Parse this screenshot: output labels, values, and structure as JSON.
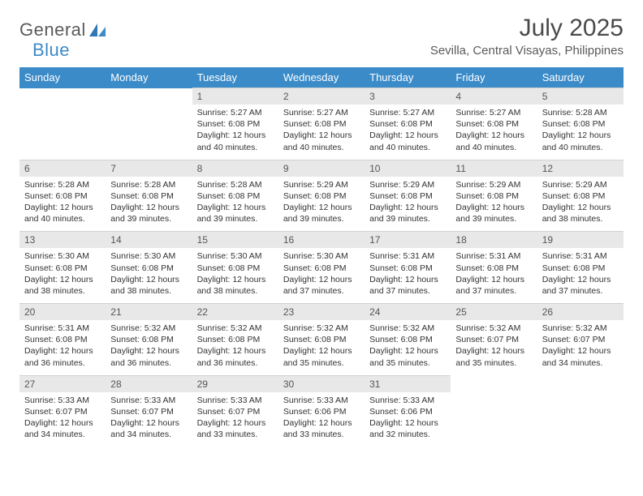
{
  "logo": {
    "text_general": "General",
    "text_blue": "Blue"
  },
  "header": {
    "title": "July 2025",
    "location": "Sevilla, Central Visayas, Philippines"
  },
  "colors": {
    "header_bg": "#3b8bc9",
    "header_text": "#ffffff",
    "daynum_bg": "#e8e8e8",
    "daynum_text": "#555555",
    "body_text": "#333333",
    "page_bg": "#ffffff",
    "logo_gray": "#5a5a5a",
    "logo_blue": "#3b8bc9"
  },
  "fonts": {
    "family": "Arial",
    "title_size_pt": 22,
    "location_size_pt": 11,
    "dayheader_size_pt": 10,
    "daynum_size_pt": 9,
    "detail_size_pt": 8
  },
  "day_headers": [
    "Sunday",
    "Monday",
    "Tuesday",
    "Wednesday",
    "Thursday",
    "Friday",
    "Saturday"
  ],
  "weeks": [
    {
      "days": [
        null,
        null,
        {
          "num": "1",
          "sunrise": "Sunrise: 5:27 AM",
          "sunset": "Sunset: 6:08 PM",
          "daylight1": "Daylight: 12 hours",
          "daylight2": "and 40 minutes."
        },
        {
          "num": "2",
          "sunrise": "Sunrise: 5:27 AM",
          "sunset": "Sunset: 6:08 PM",
          "daylight1": "Daylight: 12 hours",
          "daylight2": "and 40 minutes."
        },
        {
          "num": "3",
          "sunrise": "Sunrise: 5:27 AM",
          "sunset": "Sunset: 6:08 PM",
          "daylight1": "Daylight: 12 hours",
          "daylight2": "and 40 minutes."
        },
        {
          "num": "4",
          "sunrise": "Sunrise: 5:27 AM",
          "sunset": "Sunset: 6:08 PM",
          "daylight1": "Daylight: 12 hours",
          "daylight2": "and 40 minutes."
        },
        {
          "num": "5",
          "sunrise": "Sunrise: 5:28 AM",
          "sunset": "Sunset: 6:08 PM",
          "daylight1": "Daylight: 12 hours",
          "daylight2": "and 40 minutes."
        }
      ]
    },
    {
      "days": [
        {
          "num": "6",
          "sunrise": "Sunrise: 5:28 AM",
          "sunset": "Sunset: 6:08 PM",
          "daylight1": "Daylight: 12 hours",
          "daylight2": "and 40 minutes."
        },
        {
          "num": "7",
          "sunrise": "Sunrise: 5:28 AM",
          "sunset": "Sunset: 6:08 PM",
          "daylight1": "Daylight: 12 hours",
          "daylight2": "and 39 minutes."
        },
        {
          "num": "8",
          "sunrise": "Sunrise: 5:28 AM",
          "sunset": "Sunset: 6:08 PM",
          "daylight1": "Daylight: 12 hours",
          "daylight2": "and 39 minutes."
        },
        {
          "num": "9",
          "sunrise": "Sunrise: 5:29 AM",
          "sunset": "Sunset: 6:08 PM",
          "daylight1": "Daylight: 12 hours",
          "daylight2": "and 39 minutes."
        },
        {
          "num": "10",
          "sunrise": "Sunrise: 5:29 AM",
          "sunset": "Sunset: 6:08 PM",
          "daylight1": "Daylight: 12 hours",
          "daylight2": "and 39 minutes."
        },
        {
          "num": "11",
          "sunrise": "Sunrise: 5:29 AM",
          "sunset": "Sunset: 6:08 PM",
          "daylight1": "Daylight: 12 hours",
          "daylight2": "and 39 minutes."
        },
        {
          "num": "12",
          "sunrise": "Sunrise: 5:29 AM",
          "sunset": "Sunset: 6:08 PM",
          "daylight1": "Daylight: 12 hours",
          "daylight2": "and 38 minutes."
        }
      ]
    },
    {
      "days": [
        {
          "num": "13",
          "sunrise": "Sunrise: 5:30 AM",
          "sunset": "Sunset: 6:08 PM",
          "daylight1": "Daylight: 12 hours",
          "daylight2": "and 38 minutes."
        },
        {
          "num": "14",
          "sunrise": "Sunrise: 5:30 AM",
          "sunset": "Sunset: 6:08 PM",
          "daylight1": "Daylight: 12 hours",
          "daylight2": "and 38 minutes."
        },
        {
          "num": "15",
          "sunrise": "Sunrise: 5:30 AM",
          "sunset": "Sunset: 6:08 PM",
          "daylight1": "Daylight: 12 hours",
          "daylight2": "and 38 minutes."
        },
        {
          "num": "16",
          "sunrise": "Sunrise: 5:30 AM",
          "sunset": "Sunset: 6:08 PM",
          "daylight1": "Daylight: 12 hours",
          "daylight2": "and 37 minutes."
        },
        {
          "num": "17",
          "sunrise": "Sunrise: 5:31 AM",
          "sunset": "Sunset: 6:08 PM",
          "daylight1": "Daylight: 12 hours",
          "daylight2": "and 37 minutes."
        },
        {
          "num": "18",
          "sunrise": "Sunrise: 5:31 AM",
          "sunset": "Sunset: 6:08 PM",
          "daylight1": "Daylight: 12 hours",
          "daylight2": "and 37 minutes."
        },
        {
          "num": "19",
          "sunrise": "Sunrise: 5:31 AM",
          "sunset": "Sunset: 6:08 PM",
          "daylight1": "Daylight: 12 hours",
          "daylight2": "and 37 minutes."
        }
      ]
    },
    {
      "days": [
        {
          "num": "20",
          "sunrise": "Sunrise: 5:31 AM",
          "sunset": "Sunset: 6:08 PM",
          "daylight1": "Daylight: 12 hours",
          "daylight2": "and 36 minutes."
        },
        {
          "num": "21",
          "sunrise": "Sunrise: 5:32 AM",
          "sunset": "Sunset: 6:08 PM",
          "daylight1": "Daylight: 12 hours",
          "daylight2": "and 36 minutes."
        },
        {
          "num": "22",
          "sunrise": "Sunrise: 5:32 AM",
          "sunset": "Sunset: 6:08 PM",
          "daylight1": "Daylight: 12 hours",
          "daylight2": "and 36 minutes."
        },
        {
          "num": "23",
          "sunrise": "Sunrise: 5:32 AM",
          "sunset": "Sunset: 6:08 PM",
          "daylight1": "Daylight: 12 hours",
          "daylight2": "and 35 minutes."
        },
        {
          "num": "24",
          "sunrise": "Sunrise: 5:32 AM",
          "sunset": "Sunset: 6:08 PM",
          "daylight1": "Daylight: 12 hours",
          "daylight2": "and 35 minutes."
        },
        {
          "num": "25",
          "sunrise": "Sunrise: 5:32 AM",
          "sunset": "Sunset: 6:07 PM",
          "daylight1": "Daylight: 12 hours",
          "daylight2": "and 35 minutes."
        },
        {
          "num": "26",
          "sunrise": "Sunrise: 5:32 AM",
          "sunset": "Sunset: 6:07 PM",
          "daylight1": "Daylight: 12 hours",
          "daylight2": "and 34 minutes."
        }
      ]
    },
    {
      "days": [
        {
          "num": "27",
          "sunrise": "Sunrise: 5:33 AM",
          "sunset": "Sunset: 6:07 PM",
          "daylight1": "Daylight: 12 hours",
          "daylight2": "and 34 minutes."
        },
        {
          "num": "28",
          "sunrise": "Sunrise: 5:33 AM",
          "sunset": "Sunset: 6:07 PM",
          "daylight1": "Daylight: 12 hours",
          "daylight2": "and 34 minutes."
        },
        {
          "num": "29",
          "sunrise": "Sunrise: 5:33 AM",
          "sunset": "Sunset: 6:07 PM",
          "daylight1": "Daylight: 12 hours",
          "daylight2": "and 33 minutes."
        },
        {
          "num": "30",
          "sunrise": "Sunrise: 5:33 AM",
          "sunset": "Sunset: 6:06 PM",
          "daylight1": "Daylight: 12 hours",
          "daylight2": "and 33 minutes."
        },
        {
          "num": "31",
          "sunrise": "Sunrise: 5:33 AM",
          "sunset": "Sunset: 6:06 PM",
          "daylight1": "Daylight: 12 hours",
          "daylight2": "and 32 minutes."
        },
        null,
        null
      ]
    }
  ]
}
